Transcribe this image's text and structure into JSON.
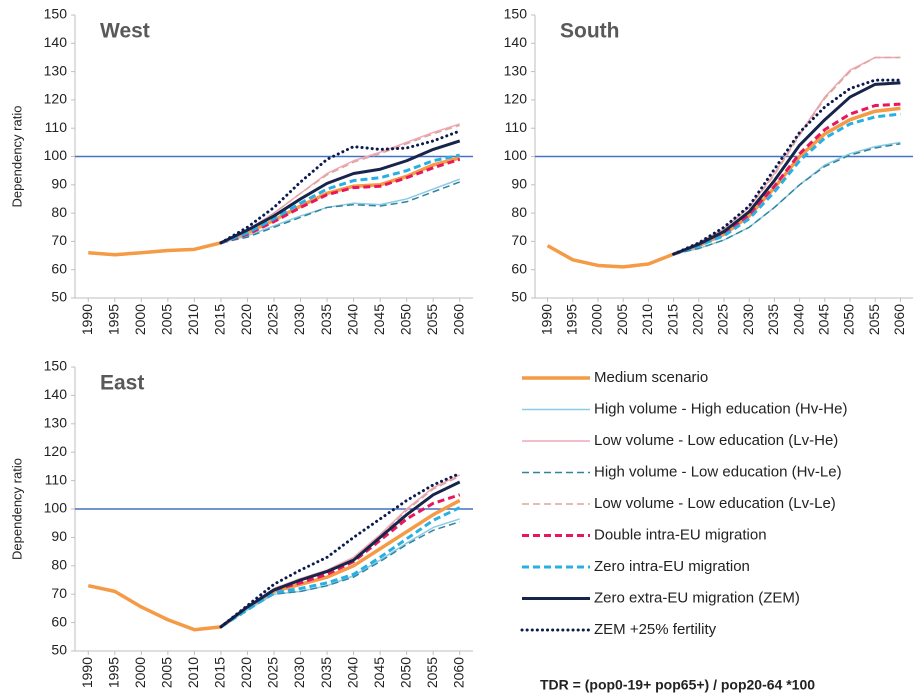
{
  "footnote": "TDR = (pop0-19+ pop65+) / pop20-64 *100",
  "chart_data": [
    {
      "type": "line",
      "title": "West",
      "ylabel": "Dependency ratio",
      "categories": [
        "1990",
        "1995",
        "2000",
        "2005",
        "2010",
        "2015",
        "2020",
        "2025",
        "2030",
        "2035",
        "2040",
        "2045",
        "2050",
        "2055",
        "2060"
      ],
      "ylim": [
        50,
        150
      ],
      "yticks": [
        50,
        60,
        70,
        80,
        90,
        100,
        110,
        120,
        130,
        140,
        150
      ],
      "hline": 100,
      "hline_color": "#4472c4",
      "series": [
        {
          "name": "Medium scenario",
          "color": "#f59a45",
          "dash": "solid",
          "width": 3.5,
          "values": [
            66,
            65.3,
            66,
            66.8,
            67.2,
            69.5,
            73,
            77.5,
            82.5,
            87,
            89.5,
            90,
            93,
            97,
            99.5
          ]
        },
        {
          "name": "High volume - High education (Hv-He)",
          "color": "#8ecae6",
          "dash": "solid",
          "width": 1.5,
          "values": [
            null,
            null,
            null,
            null,
            null,
            69.5,
            72,
            75.5,
            79,
            82,
            83.5,
            83,
            85,
            88.5,
            92
          ]
        },
        {
          "name": "Low volume - Low education (Lv-He)",
          "color": "#f2a6b8",
          "dash": "solid",
          "width": 1.5,
          "values": [
            null,
            null,
            null,
            null,
            null,
            69.5,
            74,
            80,
            87,
            94,
            98.5,
            101.5,
            105,
            108.5,
            111.5
          ]
        },
        {
          "name": "High volume - Low education (Hv-Le)",
          "color": "#31859b",
          "dash": "dashed",
          "width": 1.5,
          "values": [
            null,
            null,
            null,
            null,
            null,
            69.5,
            71.5,
            75,
            78.5,
            82,
            83,
            82.5,
            84,
            87.5,
            91
          ]
        },
        {
          "name": "Low volume - Low education (Lv-Le)",
          "color": "#dba99c",
          "dash": "dashed",
          "width": 1.5,
          "values": [
            null,
            null,
            null,
            null,
            null,
            69.5,
            74,
            80,
            87,
            93.5,
            98,
            101,
            104.5,
            108,
            111
          ]
        },
        {
          "name": "Double intra-EU migration",
          "color": "#e8175d",
          "dash": "dashed",
          "width": 3,
          "values": [
            null,
            null,
            null,
            null,
            null,
            69.5,
            72.5,
            77,
            82,
            86.5,
            89,
            89.5,
            92.5,
            96,
            99
          ]
        },
        {
          "name": "Zero intra-EU migration",
          "color": "#27b0e6",
          "dash": "dashed",
          "width": 3,
          "values": [
            null,
            null,
            null,
            null,
            null,
            69.5,
            73,
            78,
            83.5,
            88.5,
            91.5,
            92.5,
            95,
            98.5,
            100.5
          ]
        },
        {
          "name": "Zero extra-EU migration (ZEM)",
          "color": "#17254b",
          "dash": "solid",
          "width": 3,
          "values": [
            null,
            null,
            null,
            null,
            null,
            69.5,
            74,
            79,
            85,
            90.5,
            94,
            95.5,
            98.5,
            102.5,
            105.5
          ]
        },
        {
          "name": "ZEM +25% fertility",
          "color": "#0c1a4f",
          "dash": "dotted",
          "width": 3,
          "values": [
            null,
            null,
            null,
            null,
            null,
            69.5,
            75,
            82,
            91,
            99,
            103.5,
            102.5,
            103,
            105.5,
            109
          ]
        }
      ]
    },
    {
      "type": "line",
      "title": "South",
      "categories": [
        "1990",
        "1995",
        "2000",
        "2005",
        "2010",
        "2015",
        "2020",
        "2025",
        "2030",
        "2035",
        "2040",
        "2045",
        "2050",
        "2055",
        "2060"
      ],
      "ylim": [
        50,
        150
      ],
      "yticks": [
        50,
        60,
        70,
        80,
        90,
        100,
        110,
        120,
        130,
        140,
        150
      ],
      "hline": 100,
      "series": [
        {
          "values": [
            68.5,
            63.5,
            61.5,
            61,
            62,
            65.5,
            68.5,
            72.5,
            79,
            89,
            100,
            108,
            113,
            116,
            117
          ]
        },
        {
          "values": [
            null,
            null,
            null,
            null,
            null,
            65.5,
            67.5,
            70.5,
            75,
            82,
            90,
            97,
            101,
            103.5,
            105
          ]
        },
        {
          "values": [
            null,
            null,
            null,
            null,
            null,
            65.5,
            69.5,
            74.5,
            82,
            94,
            108,
            121,
            130.5,
            135,
            135
          ]
        },
        {
          "values": [
            null,
            null,
            null,
            null,
            null,
            65.5,
            67.5,
            70.5,
            75,
            82,
            90,
            96.5,
            100.5,
            103,
            104.5
          ]
        },
        {
          "values": [
            null,
            null,
            null,
            null,
            null,
            65.5,
            69.5,
            74.5,
            82,
            93.5,
            107.5,
            120.5,
            130,
            135,
            135
          ]
        },
        {
          "values": [
            null,
            null,
            null,
            null,
            null,
            65.5,
            68.5,
            72.5,
            79.5,
            89.5,
            101,
            109.5,
            115,
            118,
            118.5
          ]
        },
        {
          "values": [
            null,
            null,
            null,
            null,
            null,
            65.5,
            68.5,
            72,
            78,
            87.5,
            98.5,
            106.5,
            111.5,
            114,
            115
          ]
        },
        {
          "values": [
            null,
            null,
            null,
            null,
            null,
            65.5,
            69,
            73.5,
            80.5,
            91.5,
            104,
            113,
            121,
            125.5,
            126
          ]
        },
        {
          "values": [
            null,
            null,
            null,
            null,
            null,
            65.5,
            69.5,
            75,
            82.5,
            95.5,
            108.5,
            117.5,
            124,
            127,
            127
          ]
        }
      ]
    },
    {
      "type": "line",
      "title": "East",
      "ylabel": "Dependency ratio",
      "categories": [
        "1990",
        "1995",
        "2000",
        "2005",
        "2010",
        "2015",
        "2020",
        "2025",
        "2030",
        "2035",
        "2040",
        "2045",
        "2050",
        "2055",
        "2060"
      ],
      "ylim": [
        50,
        150
      ],
      "yticks": [
        50,
        60,
        70,
        80,
        90,
        100,
        110,
        120,
        130,
        140,
        150
      ],
      "hline": 100,
      "series": [
        {
          "values": [
            73,
            71,
            65.5,
            61,
            57.5,
            58.5,
            65,
            71,
            73.5,
            76,
            80,
            86,
            92,
            98,
            103
          ]
        },
        {
          "values": [
            null,
            null,
            null,
            null,
            null,
            58.5,
            64.5,
            70,
            71,
            73,
            76.5,
            82,
            88,
            93.5,
            96.5
          ]
        },
        {
          "values": [
            null,
            null,
            null,
            null,
            null,
            58.5,
            65.5,
            72,
            75.5,
            78.5,
            83,
            91,
            100,
            107.5,
            112
          ]
        },
        {
          "values": [
            null,
            null,
            null,
            null,
            null,
            58.5,
            64.5,
            70,
            71,
            73,
            76,
            81.5,
            87.5,
            92.5,
            95.5
          ]
        },
        {
          "values": [
            null,
            null,
            null,
            null,
            null,
            58.5,
            65.5,
            72,
            75.5,
            78,
            82.5,
            90.5,
            99.5,
            107,
            111.5
          ]
        },
        {
          "values": [
            null,
            null,
            null,
            null,
            null,
            58.5,
            65.5,
            71.5,
            74,
            77,
            81.5,
            89,
            96.5,
            102,
            105
          ]
        },
        {
          "values": [
            null,
            null,
            null,
            null,
            null,
            58.5,
            64.5,
            70.5,
            72,
            74,
            77,
            83,
            89.5,
            96,
            100.5
          ]
        },
        {
          "values": [
            null,
            null,
            null,
            null,
            null,
            58.5,
            65.5,
            71.5,
            75,
            78,
            82,
            90,
            98,
            105,
            109.5
          ]
        },
        {
          "values": [
            null,
            null,
            null,
            null,
            null,
            58.5,
            66,
            73.5,
            78.5,
            83,
            90,
            96.5,
            103,
            108.5,
            112.5
          ]
        }
      ]
    }
  ]
}
